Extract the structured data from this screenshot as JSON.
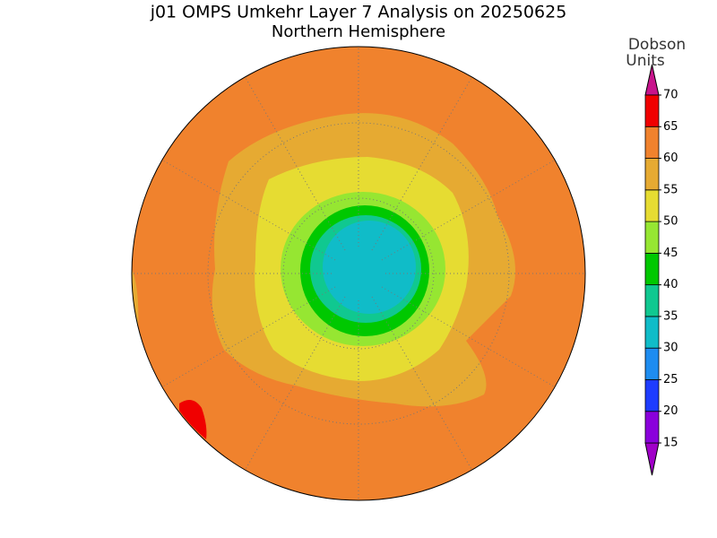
{
  "title": "j01 OMPS Umkehr Layer 7 Analysis on 20250625",
  "subtitle": "Northern Hemisphere",
  "colorbar": {
    "label_lines": [
      "Dobson",
      "Units"
    ],
    "ticks": [
      15,
      20,
      25,
      30,
      35,
      40,
      45,
      50,
      55,
      60,
      65,
      70
    ],
    "colors": [
      "#8a00dc",
      "#1e3cff",
      "#1e8cf0",
      "#10bcc8",
      "#10c890",
      "#00c800",
      "#96e632",
      "#e6dc32",
      "#e6aa32",
      "#f0822d",
      "#f00000"
    ],
    "under_color": "#a000c8",
    "over_color": "#c8148c"
  }
}
